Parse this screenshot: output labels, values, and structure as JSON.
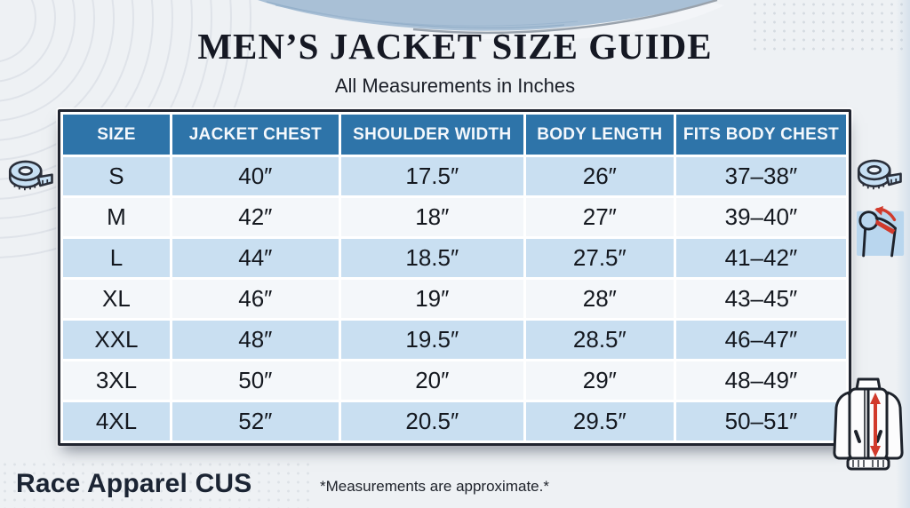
{
  "header": {
    "title": "MEN’S JACKET SIZE GUIDE",
    "subtitle": "All Measurements in Inches"
  },
  "table": {
    "headers": [
      "SIZE",
      "JACKET CHEST",
      "SHOULDER WIDTH",
      "BODY LENGTH",
      "FITS BODY CHEST"
    ],
    "rows": [
      [
        "S",
        "40″",
        "17.5″",
        "26″",
        "37–38″"
      ],
      [
        "M",
        "42″",
        "18″",
        "27″",
        "39–40″"
      ],
      [
        "L",
        "44″",
        "18.5″",
        "27.5″",
        "41–42″"
      ],
      [
        "XL",
        "46″",
        "19″",
        "28″",
        "43–45″"
      ],
      [
        "XXL",
        "48″",
        "19.5″",
        "28.5″",
        "46–47″"
      ],
      [
        "3XL",
        "50″",
        "20″",
        "29″",
        "48–49″"
      ],
      [
        "4XL",
        "52″",
        "20.5″",
        "29.5″",
        "50–51″"
      ]
    ]
  },
  "footer": {
    "brand": "Race Apparel CUS",
    "note": "*Measurements are approximate.*"
  },
  "icons": {
    "left": "tape-measure-icon",
    "right_top": "tape-measure-icon",
    "right_shoulder": "shoulder-width-icon",
    "right_bottom": "jacket-body-length-icon"
  },
  "colors": {
    "bg": "#eef1f4",
    "header-blue": "#2e74a9",
    "row-blue": "#c9dff1",
    "row-white": "#f4f7fa",
    "border-navy": "#20242f",
    "accent-red": "#d13a2c",
    "icon-blue": "#c7e0f4",
    "icon-blue-2": "#b9d6ee",
    "text-dark": "#14181f",
    "brand-navy": "#1b2433",
    "wave-blue": "#a9c0d6"
  }
}
